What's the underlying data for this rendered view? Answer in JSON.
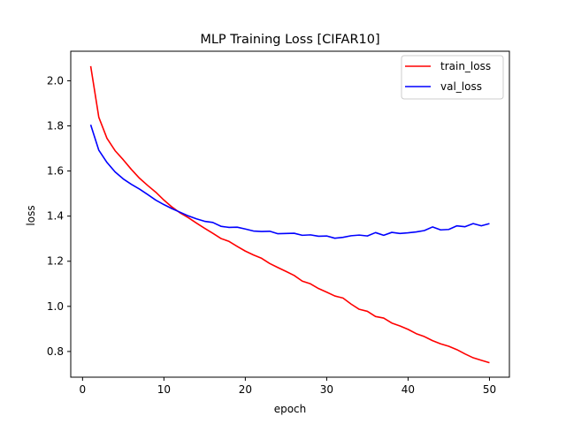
{
  "chart_data": {
    "type": "line",
    "title": "MLP Training Loss [CIFAR10]",
    "xlabel": "epoch",
    "ylabel": "loss",
    "xlim": [
      -1.45,
      52.45
    ],
    "ylim": [
      0.686,
      2.131
    ],
    "xticks": [
      0,
      10,
      20,
      30,
      40,
      50
    ],
    "yticks": [
      0.8,
      1.0,
      1.2,
      1.4,
      1.6,
      1.8,
      2.0
    ],
    "xtick_labels": [
      "0",
      "10",
      "20",
      "30",
      "40",
      "50"
    ],
    "ytick_labels": [
      "0.8",
      "1.0",
      "1.2",
      "1.4",
      "1.6",
      "1.8",
      "2.0"
    ],
    "grid": false,
    "legend_position": "top-right",
    "x": [
      1,
      2,
      3,
      4,
      5,
      6,
      7,
      8,
      9,
      10,
      11,
      12,
      13,
      14,
      15,
      16,
      17,
      18,
      19,
      20,
      21,
      22,
      23,
      24,
      25,
      26,
      27,
      28,
      29,
      30,
      31,
      32,
      33,
      34,
      35,
      36,
      37,
      38,
      39,
      40,
      41,
      42,
      43,
      44,
      45,
      46,
      47,
      48,
      49,
      50
    ],
    "series": [
      {
        "name": "train_loss",
        "color": "#ff0000",
        "values": [
          2.065,
          1.838,
          1.745,
          1.69,
          1.65,
          1.607,
          1.568,
          1.536,
          1.506,
          1.471,
          1.44,
          1.414,
          1.393,
          1.369,
          1.346,
          1.324,
          1.301,
          1.288,
          1.266,
          1.245,
          1.228,
          1.213,
          1.19,
          1.172,
          1.155,
          1.137,
          1.112,
          1.1,
          1.079,
          1.063,
          1.046,
          1.037,
          1.01,
          0.987,
          0.978,
          0.955,
          0.948,
          0.926,
          0.913,
          0.898,
          0.879,
          0.866,
          0.848,
          0.834,
          0.823,
          0.808,
          0.789,
          0.772,
          0.761,
          0.75
        ]
      },
      {
        "name": "val_loss",
        "color": "#0000ff",
        "values": [
          1.805,
          1.692,
          1.638,
          1.596,
          1.565,
          1.541,
          1.52,
          1.496,
          1.471,
          1.451,
          1.433,
          1.417,
          1.401,
          1.388,
          1.377,
          1.372,
          1.355,
          1.35,
          1.351,
          1.343,
          1.334,
          1.332,
          1.333,
          1.322,
          1.323,
          1.324,
          1.315,
          1.317,
          1.311,
          1.312,
          1.302,
          1.306,
          1.313,
          1.316,
          1.312,
          1.327,
          1.315,
          1.328,
          1.323,
          1.326,
          1.33,
          1.336,
          1.352,
          1.339,
          1.341,
          1.357,
          1.353,
          1.367,
          1.357,
          1.367
        ]
      }
    ]
  }
}
